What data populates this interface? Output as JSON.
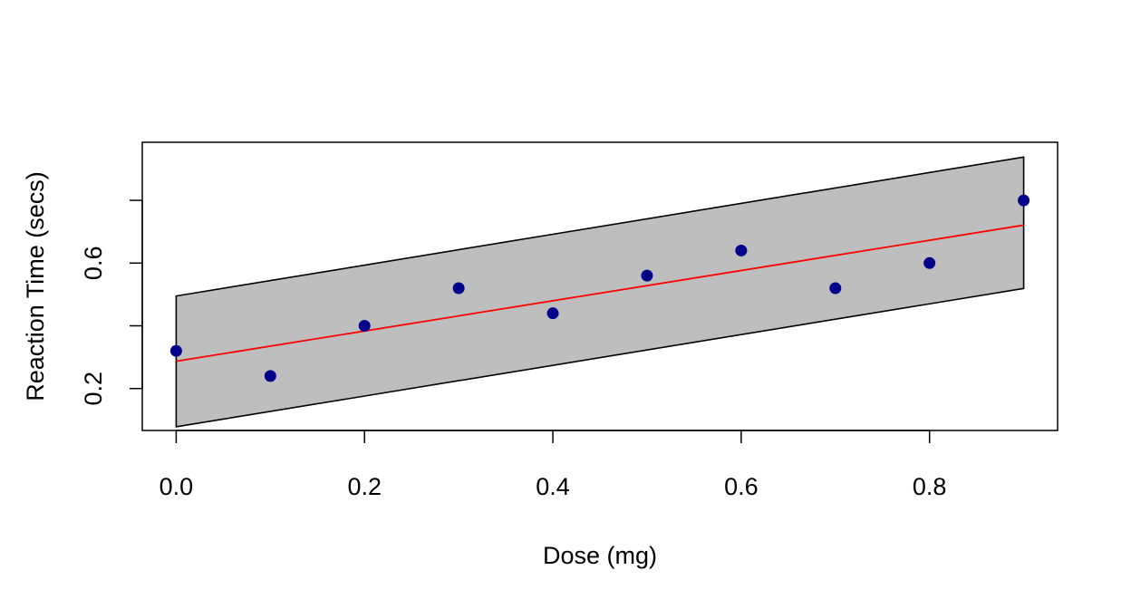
{
  "chart_data": {
    "type": "scatter",
    "title": "",
    "xlabel": "Dose (mg)",
    "ylabel": "Reaction Time (secs)",
    "xlim": [
      -0.036,
      0.936
    ],
    "ylim": [
      0.0663,
      0.9852
    ],
    "x_ticks": [
      0.0,
      0.2,
      0.4,
      0.6,
      0.8
    ],
    "x_tick_labels": [
      "0.0",
      "0.2",
      "0.4",
      "0.6",
      "0.8"
    ],
    "y_ticks": [
      0.2,
      0.4,
      0.6,
      0.8
    ],
    "y_tick_labels": [
      "0.2",
      "",
      "0.6",
      ""
    ],
    "grid": false,
    "points": {
      "x": [
        0.0,
        0.1,
        0.2,
        0.3,
        0.4,
        0.5,
        0.6,
        0.7,
        0.8,
        0.9
      ],
      "y": [
        0.32,
        0.24,
        0.4,
        0.52,
        0.44,
        0.56,
        0.64,
        0.52,
        0.6,
        0.8
      ],
      "color": "#00008B"
    },
    "fit_line": {
      "x": [
        0.0,
        0.9
      ],
      "y": [
        0.287,
        0.721
      ],
      "color": "#FF0000"
    },
    "band": {
      "x": [
        0.0,
        0.9
      ],
      "lower": [
        0.078,
        0.519
      ],
      "upper": [
        0.495,
        0.938
      ],
      "fill": "#BEBEBE",
      "stroke": "#000000"
    }
  }
}
